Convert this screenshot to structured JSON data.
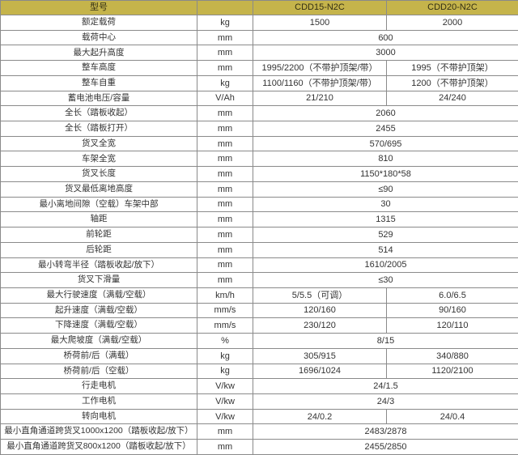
{
  "table": {
    "header": {
      "parameter_label": "型号",
      "unit_label": "",
      "models": [
        "CDD15-N2C",
        "CDD20-N2C"
      ],
      "header_bg_color": "#c5b44b",
      "border_color": "#8a8a8a"
    },
    "rows": [
      {
        "label": "额定载荷",
        "unit": "kg",
        "v1": "1500",
        "v2": "2000"
      },
      {
        "label": "载荷中心",
        "unit": "mm",
        "merged": "600"
      },
      {
        "label": "最大起升高度",
        "unit": "mm",
        "merged": "3000"
      },
      {
        "label": "整车高度",
        "unit": "mm",
        "v1": "1995/2200（不带护顶架/带）",
        "v2": "1995（不带护顶架）"
      },
      {
        "label": "整车自重",
        "unit": "kg",
        "v1": "1100/1160（不带护顶架/带）",
        "v2": "1200（不带护顶架）"
      },
      {
        "label": "蓄电池电压/容量",
        "unit": "V/Ah",
        "v1": "21/210",
        "v2": "24/240"
      },
      {
        "label": "全长（踏板收起）",
        "unit": "mm",
        "merged": "2060"
      },
      {
        "label": "全长（踏板打开）",
        "unit": "mm",
        "merged": "2455"
      },
      {
        "label": "货叉全宽",
        "unit": "mm",
        "merged": "570/695"
      },
      {
        "label": "车架全宽",
        "unit": "mm",
        "merged": "810"
      },
      {
        "label": "货叉长度",
        "unit": "mm",
        "merged": "1150*180*58"
      },
      {
        "label": "货叉最低离地高度",
        "unit": "mm",
        "merged": "≤90"
      },
      {
        "label": "最小离地间隙（空载）车架中部",
        "unit": "mm",
        "merged": "30"
      },
      {
        "label": "轴距",
        "unit": "mm",
        "merged": "1315"
      },
      {
        "label": "前轮距",
        "unit": "mm",
        "merged": "529"
      },
      {
        "label": "后轮距",
        "unit": "mm",
        "merged": "514"
      },
      {
        "label": "最小转弯半径（踏板收起/放下）",
        "unit": "mm",
        "merged": "1610/2005"
      },
      {
        "label": "货叉下滑量",
        "unit": "mm",
        "merged": "≤30"
      },
      {
        "label": "最大行驶速度（满载/空载）",
        "unit": "km/h",
        "v1": "5/5.5（可调）",
        "v2": "6.0/6.5"
      },
      {
        "label": "起升速度（满载/空载）",
        "unit": "mm/s",
        "v1": "120/160",
        "v2": "90/160"
      },
      {
        "label": "下降速度（满载/空载）",
        "unit": "mm/s",
        "v1": "230/120",
        "v2": "120/110"
      },
      {
        "label": "最大爬坡度（满载/空载）",
        "unit": "%",
        "merged": "8/15"
      },
      {
        "label": "桥荷前/后（满载）",
        "unit": "kg",
        "v1": "305/915",
        "v2": "340/880"
      },
      {
        "label": "桥荷前/后（空载）",
        "unit": "kg",
        "v1": "1696/1024",
        "v2": "1120/2100"
      },
      {
        "label": "行走电机",
        "unit": "V/kw",
        "merged": "24/1.5"
      },
      {
        "label": "工作电机",
        "unit": "V/kw",
        "merged": "24/3"
      },
      {
        "label": "转向电机",
        "unit": "V/kw",
        "v1": "24/0.2",
        "v2": "24/0.4"
      },
      {
        "label": "最小直角通道跨货叉1000x1200（踏板收起/放下）",
        "unit": "mm",
        "merged": "2483/2878"
      },
      {
        "label": "最小直角通道跨货叉800x1200（踏板收起/放下）",
        "unit": "mm",
        "merged": "2455/2850"
      }
    ]
  }
}
